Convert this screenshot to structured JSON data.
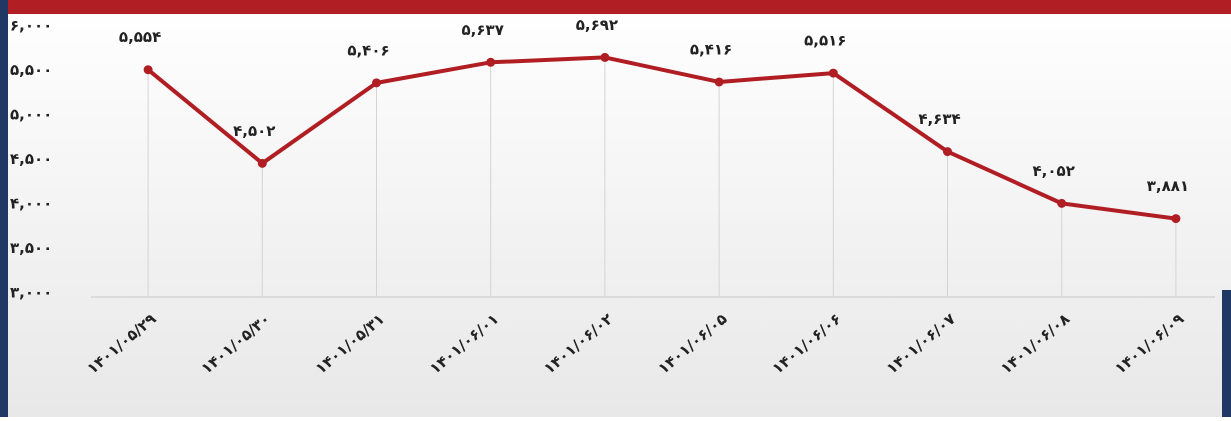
{
  "chart_data": {
    "type": "line",
    "categories": [
      "۱۴۰۱/۰۵/۲۹",
      "۱۴۰۱/۰۵/۳۰",
      "۱۴۰۱/۰۵/۳۱",
      "۱۴۰۱/۰۶/۰۱",
      "۱۴۰۱/۰۶/۰۲",
      "۱۴۰۱/۰۶/۰۵",
      "۱۴۰۱/۰۶/۰۶",
      "۱۴۰۱/۰۶/۰۷",
      "۱۴۰۱/۰۶/۰۸",
      "۱۴۰۱/۰۶/۰۹"
    ],
    "values": [
      5554,
      4502,
      5406,
      5637,
      5692,
      5416,
      5516,
      4634,
      4052,
      3881
    ],
    "value_labels": [
      "۵,۵۵۴",
      "۴,۵۰۲",
      "۵,۴۰۶",
      "۵,۶۳۷",
      "۵,۶۹۲",
      "۵,۴۱۶",
      "۵,۵۱۶",
      "۴,۶۳۴",
      "۴,۰۵۲",
      "۳,۸۸۱"
    ],
    "color": "#b01e24",
    "ylim": [
      3000,
      6000
    ],
    "yticks": [
      {
        "value": 3000,
        "label": "۳,۰۰۰"
      },
      {
        "value": 3500,
        "label": "۳,۵۰۰"
      },
      {
        "value": 4000,
        "label": "۴,۰۰۰"
      },
      {
        "value": 4500,
        "label": "۴,۵۰۰"
      },
      {
        "value": 5000,
        "label": "۵,۰۰۰"
      },
      {
        "value": 5500,
        "label": "۵,۵۰۰"
      },
      {
        "value": 6000,
        "label": "۶,۰۰۰"
      }
    ],
    "grid": true
  }
}
